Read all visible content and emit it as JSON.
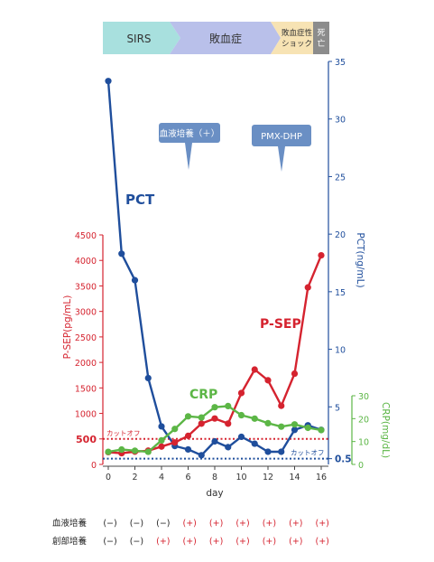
{
  "phases": [
    {
      "label": "SIRS",
      "color": "#a8e0de"
    },
    {
      "label": "敗血症",
      "color": "#b9c0ea"
    },
    {
      "label": "敗血症性\nショック",
      "color": "#f7e3b4"
    },
    {
      "label": "死亡",
      "color": "#8c8c8c"
    }
  ],
  "callouts": [
    {
      "label": "血液培養（＋）"
    },
    {
      "label": "PMX-DHP"
    }
  ],
  "labels": {
    "pct": "PCT",
    "psep": "P-SEP",
    "crp": "CRP"
  },
  "chart_data": {
    "type": "line",
    "xlabel": "day",
    "x_ticks": [
      0,
      2,
      4,
      6,
      8,
      10,
      12,
      14,
      16
    ],
    "axes": {
      "psep": {
        "label": "P-SEP(pg/mL)",
        "ylim": [
          0,
          4500
        ],
        "ticks": [
          0,
          500,
          1000,
          1500,
          2000,
          2500,
          3000,
          3500,
          4000,
          4500
        ],
        "color": "#d5232f"
      },
      "pct": {
        "label": "PCT(ng/mL)",
        "ylim": [
          0,
          35
        ],
        "ticks": [
          0.5,
          5,
          10,
          15,
          20,
          25,
          30,
          35
        ],
        "color": "#1f4e9c"
      },
      "crp": {
        "label": "CRP(mg/dL)",
        "ylim": [
          0,
          30
        ],
        "ticks": [
          0,
          10,
          20,
          30
        ],
        "color": "#5cb646"
      }
    },
    "series": [
      {
        "name": "PCT",
        "axis": "pct",
        "color": "#1f4e9c",
        "x": [
          0,
          1,
          2,
          3,
          4,
          5,
          6,
          7,
          8,
          9,
          10,
          11,
          12,
          13,
          14,
          15,
          16
        ],
        "y": [
          33.3,
          18.3,
          16.0,
          7.5,
          3.3,
          1.6,
          1.3,
          0.8,
          2.0,
          1.5,
          2.4,
          1.8,
          1.1,
          1.1,
          3.0,
          3.4,
          3.0
        ]
      },
      {
        "name": "P-SEP",
        "axis": "psep",
        "color": "#d5232f",
        "x": [
          0,
          1,
          2,
          3,
          4,
          5,
          6,
          7,
          8,
          9,
          10,
          11,
          12,
          13,
          14,
          15,
          16
        ],
        "y": [
          240,
          220,
          250,
          270,
          350,
          430,
          560,
          800,
          900,
          800,
          1400,
          1860,
          1650,
          1150,
          1780,
          3470,
          4100
        ]
      },
      {
        "name": "CRP",
        "axis": "crp",
        "color": "#5cb646",
        "x": [
          0,
          1,
          2,
          3,
          4,
          5,
          6,
          7,
          8,
          9,
          10,
          11,
          12,
          13,
          14,
          15,
          16
        ],
        "y": [
          5.5,
          6.5,
          6.0,
          5.5,
          10.5,
          15.5,
          21.0,
          20.5,
          25.0,
          25.5,
          21.5,
          20.0,
          18.0,
          16.5,
          17.5,
          16.0,
          15.0
        ]
      }
    ],
    "cutoffs": [
      {
        "label": "カットオフ",
        "axis": "psep",
        "value": 500,
        "color": "#d5232f"
      },
      {
        "label": "カットオフ",
        "axis": "pct",
        "value": 0.5,
        "color": "#1f4e9c"
      }
    ]
  },
  "culture_table": {
    "rows": [
      {
        "label": "血液培養",
        "values": [
          "(−)",
          "(−)",
          "(−)",
          "(+)",
          "(+)",
          "(+)",
          "(+)",
          "(+)",
          "(+)"
        ]
      },
      {
        "label": "創部培養",
        "values": [
          "(−)",
          "(−)",
          "(+)",
          "(+)",
          "(+)",
          "(+)",
          "(+)",
          "(+)",
          "(+)"
        ]
      }
    ],
    "neg_color": "#222222",
    "pos_color": "#d5232f"
  }
}
